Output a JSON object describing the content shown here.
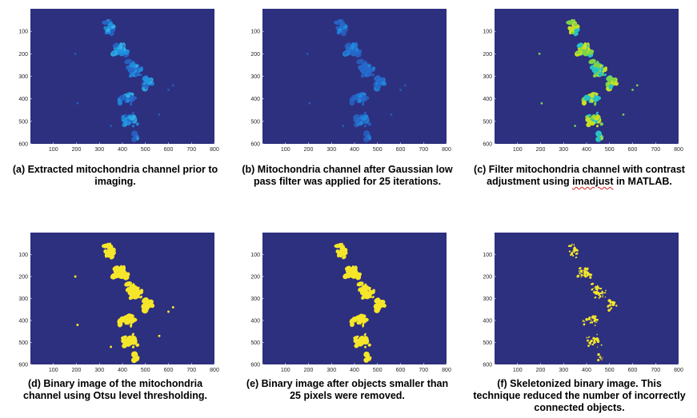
{
  "colors": {
    "background": "#2d2f7f",
    "blob_dim": "#2767c8",
    "blob_mid": "#1f8fe0",
    "blob_bright": "#34b6e6",
    "enhanced_yellow": "#c8e024",
    "enhanced_green": "#7cd34a",
    "enhanced_cyan": "#27c3c4",
    "binary_yellow": "#f5e62a"
  },
  "axis": {
    "x_ticks": [
      "100",
      "200",
      "300",
      "400",
      "500",
      "600",
      "700",
      "800"
    ],
    "y_ticks": [
      "100",
      "200",
      "300",
      "400",
      "500",
      "600"
    ]
  },
  "panels": [
    {
      "id": "a",
      "mode": "raw",
      "caption_lines": [
        "(a) Extracted mitochondria channel prior to",
        "imaging."
      ]
    },
    {
      "id": "b",
      "mode": "smooth",
      "caption_lines": [
        "(b) Mitochondria channel after Gaussian low",
        "pass filter was applied for 25 iterations."
      ]
    },
    {
      "id": "c",
      "mode": "enhanced",
      "caption_lines": [
        "(c) Filter mitochondria channel with contrast",
        "adjustment using imadjust in MATLAB."
      ],
      "underlined_word": "imadjust"
    },
    {
      "id": "d",
      "mode": "binary",
      "caption_lines": [
        "(d) Binary image of the mitochondria",
        "channel using Otsu level thresholding."
      ]
    },
    {
      "id": "e",
      "mode": "cleaned",
      "caption_lines": [
        "(e) Binary image after objects smaller than",
        "25 pixels were removed."
      ]
    },
    {
      "id": "f",
      "mode": "skeleton",
      "caption_lines": [
        "(f) Skeletonized binary image. This",
        "technique reduced the number of incorrectly",
        "connected objects."
      ]
    }
  ]
}
